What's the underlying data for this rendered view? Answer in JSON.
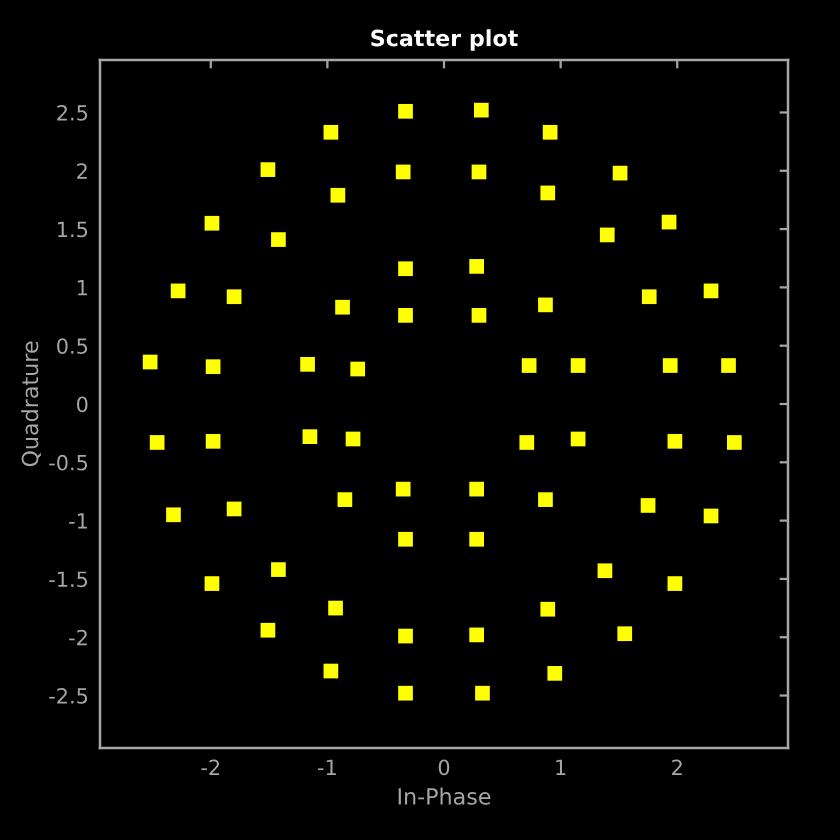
{
  "chart_data": {
    "type": "scatter",
    "title": "Scatter plot",
    "xlabel": "In-Phase",
    "ylabel": "Quadrature",
    "x": [
      -0.33,
      -0.97,
      -1.51,
      -0.35,
      -0.91,
      -1.99,
      -1.42,
      -0.33,
      -2.28,
      -1.8,
      -0.87,
      -0.33,
      -2.52,
      -1.98,
      -1.17,
      -0.74,
      0.32,
      0.91,
      0.3,
      0.89,
      1.51,
      1.93,
      1.4,
      0.28,
      2.29,
      1.76,
      0.3,
      0.87,
      0.73,
      1.15,
      1.94,
      2.44,
      -2.46,
      -1.98,
      -1.15,
      -0.78,
      -0.35,
      -0.85,
      -1.8,
      -2.32,
      -0.33,
      -1.42,
      -1.99,
      -0.93,
      -0.33,
      -1.51,
      -0.97,
      -0.33,
      0.71,
      1.15,
      1.98,
      2.49,
      0.28,
      0.87,
      1.75,
      2.29,
      0.28,
      1.38,
      1.98,
      0.89,
      0.28,
      1.55,
      0.95,
      0.33
    ],
    "series": [
      {
        "color": "#ffff00",
        "values": [
          2.51,
          2.33,
          2.01,
          1.99,
          1.79,
          1.55,
          1.41,
          1.16,
          0.97,
          0.92,
          0.83,
          0.76,
          0.36,
          0.32,
          0.34,
          0.3,
          2.52,
          2.33,
          1.99,
          1.81,
          1.98,
          1.56,
          1.45,
          1.18,
          0.97,
          0.92,
          0.76,
          0.85,
          0.33,
          0.33,
          0.33,
          0.33,
          -0.33,
          -0.32,
          -0.28,
          -0.3,
          -0.73,
          -0.82,
          -0.9,
          -0.95,
          -1.16,
          -1.42,
          -1.54,
          -1.75,
          -1.99,
          -1.94,
          -2.29,
          -2.48,
          -0.33,
          -0.3,
          -0.32,
          -0.33,
          -0.73,
          -0.82,
          -0.87,
          -0.96,
          -1.16,
          -1.43,
          -1.54,
          -1.76,
          -1.98,
          -1.97,
          -2.31,
          -2.48
        ]
      }
    ],
    "marker": "square",
    "xlim": [
      -2.95,
      2.95
    ],
    "ylim": [
      -2.95,
      2.95
    ],
    "xticks": [
      -2,
      -1,
      0,
      1,
      2
    ],
    "yticks": [
      -2.5,
      -2,
      -1.5,
      -1,
      -0.5,
      0,
      0.5,
      1,
      1.5,
      2,
      2.5
    ]
  }
}
